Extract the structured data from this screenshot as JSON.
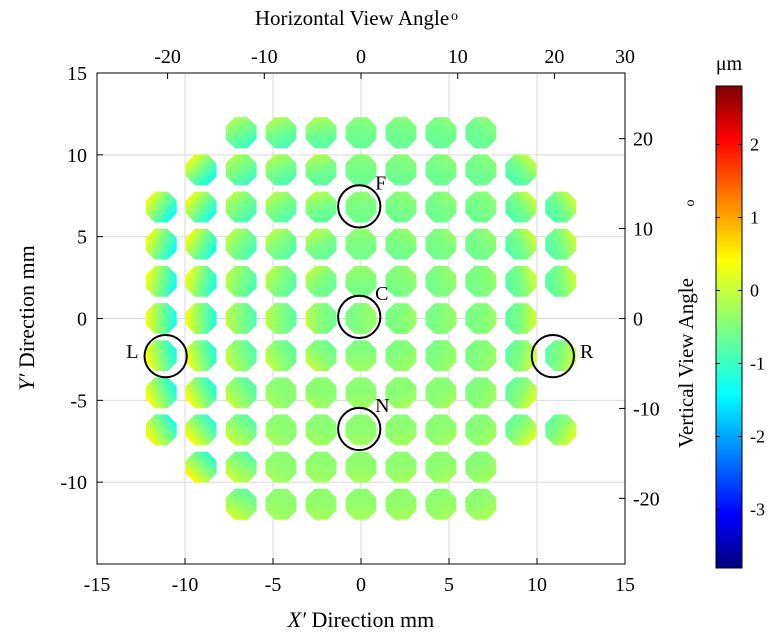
{
  "chart_data": {
    "type": "heatmap",
    "title": "Horizontal View Angle",
    "title_unit": "o",
    "xlabel_italic": "X′",
    "xlabel_rest": " Direction mm",
    "ylabel_italic": "Y′",
    "ylabel_rest": " Direction mm",
    "right_label": "Vertical View Angle",
    "right_unit": "o",
    "xlim": [
      -15,
      15
    ],
    "ylim": [
      -15,
      15
    ],
    "x_ticks": [
      "-15",
      "-10",
      "-5",
      "0",
      "5",
      "10",
      "15"
    ],
    "y_ticks": [
      "15",
      "10",
      "5",
      "0",
      "-5",
      "-10"
    ],
    "top_ticks": [
      "-20",
      "-10",
      "0",
      "10",
      "20",
      "30"
    ],
    "right_ticks": [
      "20",
      "10",
      "0",
      "-10",
      "-20"
    ],
    "colorbar": {
      "unit": "μm",
      "range": [
        -3.8,
        2.8
      ],
      "tick_labels": [
        "2",
        "1",
        "0",
        "-1",
        "-2",
        "-3"
      ]
    },
    "spot_spacing_mm": 2.27,
    "spot_radius_mm": 0.95,
    "rows": [
      {
        "y": 11.35,
        "cols": [
          -3,
          -2,
          -1,
          0,
          1,
          2,
          3
        ]
      },
      {
        "y": 9.08,
        "cols": [
          -4,
          -3,
          -2,
          -1,
          0,
          1,
          2,
          3,
          4
        ]
      },
      {
        "y": 6.81,
        "cols": [
          -5,
          -4,
          -3,
          -2,
          -1,
          0,
          1,
          2,
          3,
          4,
          5
        ]
      },
      {
        "y": 4.54,
        "cols": [
          -5,
          -4,
          -3,
          -2,
          -1,
          0,
          1,
          2,
          3,
          4,
          5
        ]
      },
      {
        "y": 2.27,
        "cols": [
          -5,
          -4,
          -3,
          -2,
          -1,
          0,
          1,
          2,
          3,
          4,
          5
        ]
      },
      {
        "y": 0,
        "cols": [
          -5,
          -4,
          -3,
          -2,
          -1,
          0,
          1,
          2,
          3,
          4
        ]
      },
      {
        "y": -2.27,
        "cols": [
          -5,
          -4,
          -3,
          -2,
          -1,
          0,
          1,
          2,
          3,
          4,
          5
        ]
      },
      {
        "y": -4.54,
        "cols": [
          -5,
          -4,
          -3,
          -2,
          -1,
          0,
          1,
          2,
          3,
          4
        ]
      },
      {
        "y": -6.81,
        "cols": [
          -5,
          -4,
          -3,
          -2,
          -1,
          0,
          1,
          2,
          3,
          4,
          5
        ]
      },
      {
        "y": -9.08,
        "cols": [
          -4,
          -3,
          -2,
          -1,
          0,
          1,
          2,
          3
        ]
      },
      {
        "y": -11.35,
        "cols": [
          -3,
          -2,
          -1,
          0,
          1,
          2,
          3
        ]
      }
    ],
    "marked_points": [
      {
        "name": "F",
        "x": -0.1,
        "y": 6.85
      },
      {
        "name": "C",
        "x": -0.1,
        "y": 0.1
      },
      {
        "name": "L",
        "x": -11.1,
        "y": -2.3
      },
      {
        "name": "R",
        "x": 10.9,
        "y": -2.3
      },
      {
        "name": "N",
        "x": -0.1,
        "y": -6.75
      }
    ]
  }
}
